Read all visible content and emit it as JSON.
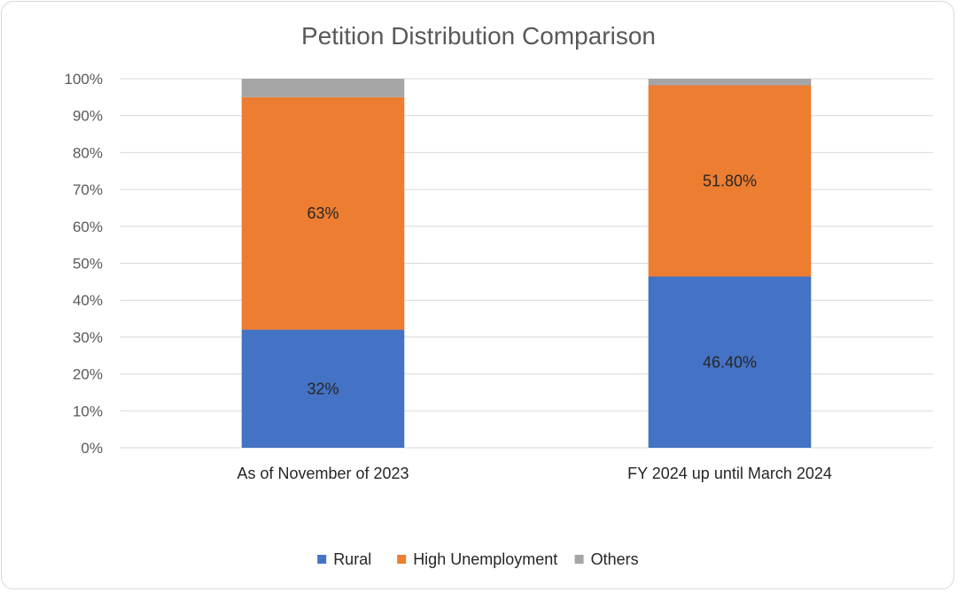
{
  "chart_data": {
    "type": "bar",
    "stacked": true,
    "title": "Petition Distribution Comparison",
    "categories": [
      "As of November of 2023",
      "FY 2024 up until March 2024"
    ],
    "series": [
      {
        "name": "Rural",
        "values": [
          32,
          46.4
        ],
        "labels": [
          "32%",
          "46.40%"
        ],
        "color": "#4472C4"
      },
      {
        "name": "High Unemployment",
        "values": [
          63,
          51.8
        ],
        "labels": [
          "63%",
          "51.80%"
        ],
        "color": "#ED7D31"
      },
      {
        "name": "Others",
        "values": [
          5,
          1.8
        ],
        "labels": [
          "",
          ""
        ],
        "color": "#A5A5A5"
      }
    ],
    "ylim": [
      0,
      100
    ],
    "yticks": [
      "0%",
      "10%",
      "20%",
      "30%",
      "40%",
      "50%",
      "60%",
      "70%",
      "80%",
      "90%",
      "100%"
    ],
    "grid": true,
    "legend": "bottom"
  }
}
